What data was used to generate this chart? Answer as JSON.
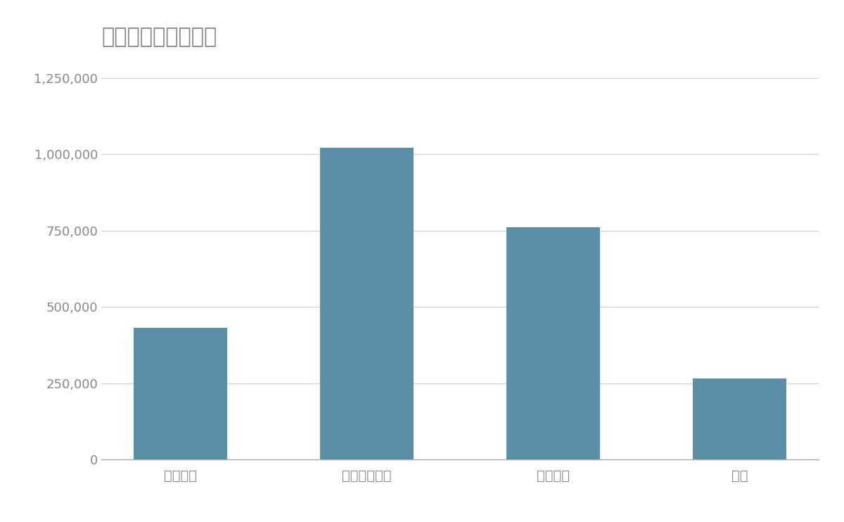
{
  "title": "競合含む年間売上高",
  "categories": [
    "東洋水産",
    "マルハニチロ",
    "ニッスイ",
    "極洋"
  ],
  "values": [
    430000,
    1020000,
    760000,
    265000
  ],
  "bar_color": "#5b8fa8",
  "ylim": [
    0,
    1300000
  ],
  "yticks": [
    0,
    250000,
    500000,
    750000,
    1000000,
    1250000
  ],
  "background_color": "#ffffff",
  "title_color": "#888888",
  "tick_color": "#888888",
  "grid_color": "#cccccc",
  "title_fontsize": 22,
  "tick_fontsize": 13,
  "xtick_fontsize": 14
}
